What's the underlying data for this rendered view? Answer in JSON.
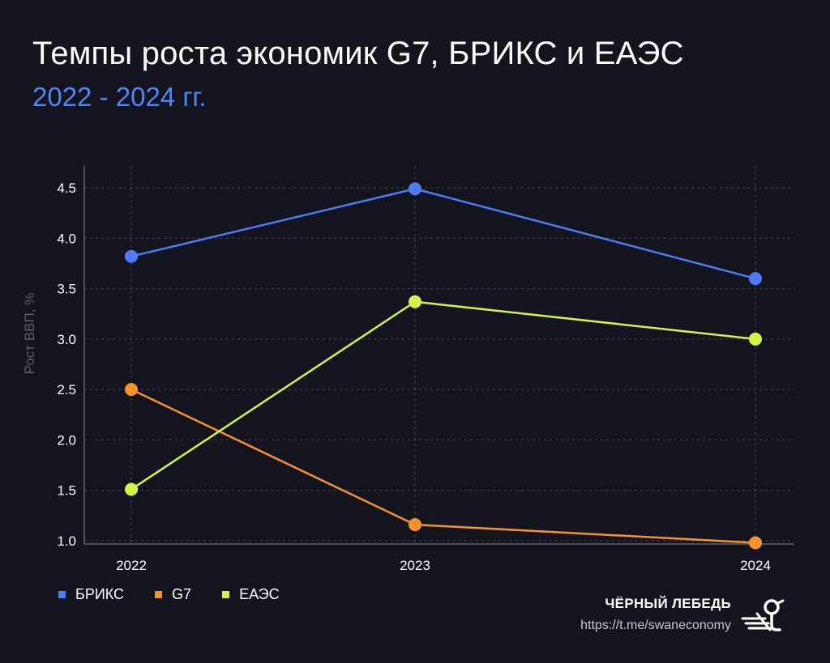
{
  "header": {
    "title": "Темпы роста экономик G7, БРИКС и ЕАЭС",
    "subtitle": "2022 - 2024 гг."
  },
  "chart_data": {
    "type": "line",
    "title": "Темпы роста экономик G7, БРИКС и ЕАЭС",
    "subtitle": "2022 - 2024 гг.",
    "xlabel": "",
    "ylabel": "Рост ВВП, %",
    "x": [
      "2022",
      "2023",
      "2024"
    ],
    "ylim": [
      1.0,
      4.5
    ],
    "yticks": [
      "1.0",
      "1.5",
      "2.0",
      "2.5",
      "3.0",
      "3.5",
      "4.0",
      "4.5"
    ],
    "grid": true,
    "legend_position": "bottom-left",
    "series": [
      {
        "name": "БРИКС",
        "values": [
          3.82,
          4.49,
          3.6
        ],
        "color": "#4f7cf4"
      },
      {
        "name": "G7",
        "values": [
          2.5,
          1.16,
          0.98
        ],
        "color": "#f7922b"
      },
      {
        "name": "ЕАЭС",
        "values": [
          1.51,
          3.37,
          3.0
        ],
        "color": "#d6f34a"
      }
    ]
  },
  "brand": {
    "name": "ЧЁРНЫЙ ЛЕБЕДЬ",
    "url": "https://t.me/swaneconomy",
    "logo_icon": "swan-logo-icon"
  }
}
